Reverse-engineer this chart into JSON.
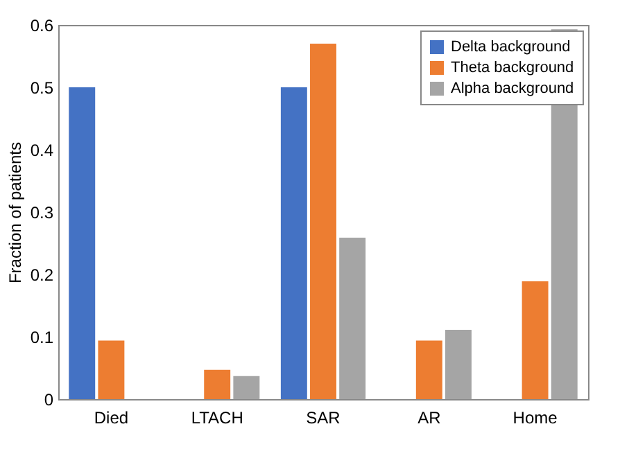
{
  "chart_data": {
    "type": "bar",
    "ylabel": "Fraction of patients",
    "categories": [
      "Died",
      "LTACH",
      "SAR",
      "AR",
      "Home"
    ],
    "series": [
      {
        "name": "Delta background",
        "color": "#4472c4",
        "values": [
          0.5,
          0,
          0.5,
          0,
          0
        ]
      },
      {
        "name": "Theta background",
        "color": "#ed7d31",
        "values": [
          0.094,
          0.047,
          0.57,
          0.094,
          0.189
        ]
      },
      {
        "name": "Alpha background",
        "color": "#a5a5a5",
        "values": [
          0,
          0.037,
          0.259,
          0.111,
          0.593
        ]
      }
    ],
    "ylim": [
      0,
      0.6
    ],
    "yticks": [
      0,
      0.1,
      0.2,
      0.3,
      0.4,
      0.5,
      0.6
    ],
    "legend": "top right",
    "grid": false
  }
}
